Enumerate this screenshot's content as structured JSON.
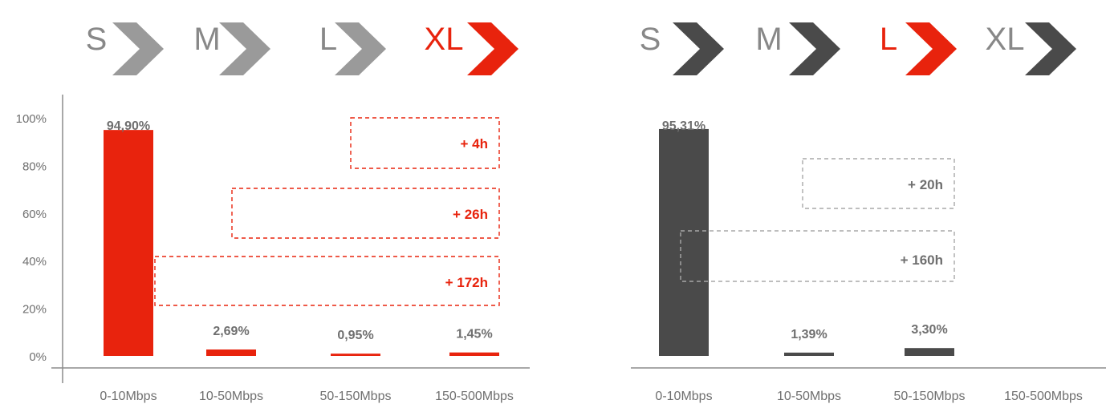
{
  "colors": {
    "red": "#e8230d",
    "light_gray": "#9a9a9a",
    "dark_gray": "#4a4a4a",
    "label_gray": "#6f6f6f",
    "axis": "#8c8c8c"
  },
  "chart_data": [
    {
      "type": "bar",
      "title": "",
      "xlabel": "",
      "ylabel": "",
      "categories": [
        "0-10Mbps",
        "10-50Mbps",
        "50-150Mbps",
        "150-500Mbps"
      ],
      "values": [
        94.9,
        2.69,
        0.95,
        1.45
      ],
      "value_labels": [
        "94,90%",
        "2,69%",
        "0,95%",
        "1,45%"
      ],
      "y_ticks": [
        "0%",
        "20%",
        "40%",
        "60%",
        "80%",
        "100%"
      ],
      "ylim": [
        0,
        100
      ],
      "bar_color": "#e8230d",
      "tiers": [
        {
          "label": "S",
          "color": "#9a9a9a",
          "text_color": "#888888"
        },
        {
          "label": "M",
          "color": "#9a9a9a",
          "text_color": "#888888"
        },
        {
          "label": "L",
          "color": "#9a9a9a",
          "text_color": "#888888"
        },
        {
          "label": "XL",
          "color": "#e8230d",
          "text_color": "#e8230d"
        }
      ],
      "annotations": [
        {
          "text": "+ 4h",
          "from_category": 3,
          "to_category": 3
        },
        {
          "text": "+ 26h",
          "from_category": 2,
          "to_category": 3
        },
        {
          "text": "+ 172h",
          "from_category": 1,
          "to_category": 3
        }
      ]
    },
    {
      "type": "bar",
      "title": "",
      "xlabel": "",
      "ylabel": "",
      "categories": [
        "0-10Mbps",
        "10-50Mbps",
        "50-150Mbps",
        "150-500Mbps"
      ],
      "values": [
        95.31,
        1.39,
        3.3,
        null
      ],
      "value_labels": [
        "95,31%",
        "1,39%",
        "3,30%",
        ""
      ],
      "ylim": [
        0,
        100
      ],
      "bar_color": "#4a4a4a",
      "tiers": [
        {
          "label": "S",
          "color": "#4a4a4a",
          "text_color": "#888888"
        },
        {
          "label": "M",
          "color": "#4a4a4a",
          "text_color": "#888888"
        },
        {
          "label": "L",
          "color": "#e8230d",
          "text_color": "#e8230d"
        },
        {
          "label": "XL",
          "color": "#4a4a4a",
          "text_color": "#888888"
        }
      ],
      "annotations": [
        {
          "text": "+ 20h",
          "from_category": 2,
          "to_category": 2
        },
        {
          "text": "+ 160h",
          "from_category": 1,
          "to_category": 2
        }
      ]
    }
  ]
}
